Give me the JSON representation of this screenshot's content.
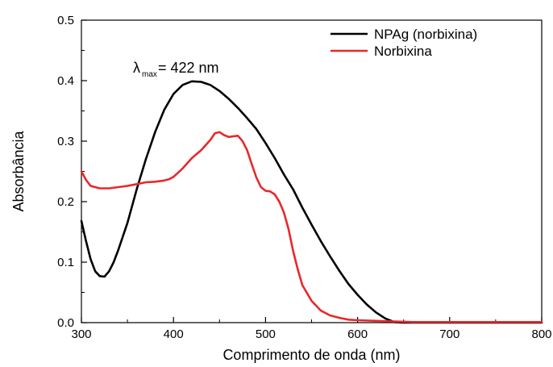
{
  "chart_data": {
    "type": "line",
    "title": "",
    "xlabel": "Comprimento de onda (nm)",
    "ylabel": "Absorbância",
    "xlim": [
      300,
      800
    ],
    "ylim": [
      0.0,
      0.5
    ],
    "x_ticks": [
      300,
      400,
      500,
      600,
      700,
      800
    ],
    "x_tick_labels": [
      "300",
      "400",
      "500",
      "600",
      "700",
      "800"
    ],
    "y_ticks": [
      0.0,
      0.1,
      0.2,
      0.3,
      0.4,
      0.5
    ],
    "y_tick_labels": [
      "0.0",
      "0.1",
      "0.2",
      "0.3",
      "0.4",
      "0.5"
    ],
    "grid": false,
    "legend_position": "top-right",
    "annotation": {
      "symbol": "λ",
      "subscript": "max",
      "text": "= 422 nm",
      "x": 422,
      "y": 0.41
    },
    "series": [
      {
        "name": "NPAg (norbixina)",
        "color": "#000000",
        "x": [
          300,
          305,
          310,
          315,
          320,
          325,
          330,
          335,
          340,
          350,
          360,
          370,
          380,
          390,
          400,
          410,
          420,
          430,
          440,
          450,
          460,
          470,
          480,
          490,
          500,
          510,
          520,
          530,
          540,
          550,
          560,
          570,
          580,
          590,
          600,
          610,
          620,
          630,
          640,
          650,
          700,
          750,
          800
        ],
        "y": [
          0.168,
          0.135,
          0.105,
          0.085,
          0.077,
          0.076,
          0.085,
          0.1,
          0.12,
          0.165,
          0.22,
          0.27,
          0.315,
          0.352,
          0.378,
          0.393,
          0.399,
          0.398,
          0.393,
          0.383,
          0.37,
          0.355,
          0.338,
          0.32,
          0.297,
          0.272,
          0.245,
          0.22,
          0.19,
          0.162,
          0.135,
          0.11,
          0.086,
          0.064,
          0.046,
          0.03,
          0.017,
          0.007,
          0.001,
          0.0,
          0.0,
          0.0,
          0.0
        ]
      },
      {
        "name": "Norbixina",
        "color": "#e8282b",
        "x": [
          300,
          305,
          310,
          320,
          330,
          340,
          350,
          360,
          370,
          380,
          390,
          395,
          400,
          410,
          420,
          430,
          440,
          445,
          450,
          455,
          460,
          465,
          470,
          475,
          480,
          485,
          490,
          495,
          500,
          505,
          510,
          515,
          520,
          525,
          530,
          535,
          540,
          550,
          560,
          570,
          580,
          590,
          600,
          620,
          640,
          660,
          700,
          750,
          800
        ],
        "y": [
          0.25,
          0.236,
          0.226,
          0.222,
          0.222,
          0.224,
          0.226,
          0.229,
          0.232,
          0.233,
          0.235,
          0.237,
          0.241,
          0.255,
          0.272,
          0.285,
          0.302,
          0.313,
          0.315,
          0.31,
          0.307,
          0.308,
          0.309,
          0.3,
          0.285,
          0.262,
          0.24,
          0.224,
          0.218,
          0.217,
          0.212,
          0.2,
          0.182,
          0.155,
          0.118,
          0.088,
          0.062,
          0.036,
          0.02,
          0.012,
          0.008,
          0.005,
          0.004,
          0.003,
          0.002,
          0.001,
          0.001,
          0.001,
          0.001
        ]
      }
    ]
  }
}
